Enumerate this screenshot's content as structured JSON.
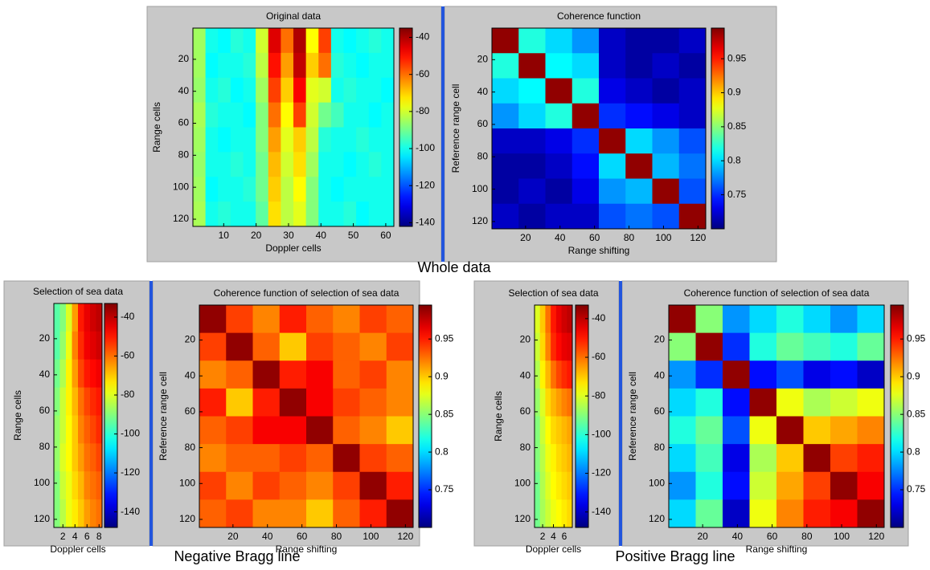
{
  "captions": [
    "Whole data",
    "Negative Bragg line",
    "Positive Bragg line"
  ],
  "chart_data": [
    {
      "type": "heatmap",
      "title": "Original data",
      "xlabel": "Doppler cells",
      "ylabel": "Range cells",
      "colormap": "jet",
      "xlim": [
        0.5,
        62.5
      ],
      "ylim": [
        0.5,
        124.5
      ],
      "xticks": [
        10,
        20,
        30,
        40,
        50,
        60
      ],
      "yticks": [
        20,
        40,
        60,
        80,
        100,
        120
      ],
      "clim": [
        -142,
        -35
      ],
      "cticks": [
        -40,
        -60,
        -80,
        -100,
        -120,
        -140
      ],
      "values": [
        [
          -85,
          -100,
          -102,
          -98,
          -100,
          -80,
          -45,
          -60,
          -40,
          -75,
          -55,
          -100,
          -102,
          -100,
          -98,
          -100
        ],
        [
          -85,
          -102,
          -100,
          -100,
          -98,
          -82,
          -50,
          -65,
          -42,
          -70,
          -60,
          -98,
          -100,
          -102,
          -100,
          -100
        ],
        [
          -86,
          -100,
          -98,
          -102,
          -100,
          -85,
          -55,
          -70,
          -48,
          -78,
          -80,
          -100,
          -98,
          -100,
          -100,
          -102
        ],
        [
          -84,
          -98,
          -100,
          -100,
          -102,
          -88,
          -60,
          -75,
          -55,
          -80,
          -90,
          -95,
          -100,
          -100,
          -102,
          -100
        ],
        [
          -85,
          -100,
          -102,
          -100,
          -100,
          -88,
          -65,
          -78,
          -70,
          -82,
          -98,
          -100,
          -100,
          -98,
          -100,
          -100
        ],
        [
          -86,
          -100,
          -100,
          -98,
          -100,
          -90,
          -68,
          -80,
          -72,
          -85,
          -100,
          -100,
          -102,
          -100,
          -98,
          -100
        ],
        [
          -85,
          -102,
          -100,
          -100,
          -98,
          -90,
          -70,
          -82,
          -75,
          -88,
          -100,
          -102,
          -100,
          -100,
          -100,
          -100
        ],
        [
          -84,
          -100,
          -98,
          -100,
          -100,
          -92,
          -72,
          -82,
          -78,
          -88,
          -100,
          -100,
          -98,
          -102,
          -100,
          -100
        ]
      ]
    },
    {
      "type": "heatmap",
      "title": "Coherence function",
      "xlabel": "Range shifting",
      "ylabel": "Reference range cell",
      "colormap": "jet",
      "xlim": [
        0.5,
        124.5
      ],
      "ylim": [
        0.5,
        124.5
      ],
      "xticks": [
        20,
        40,
        60,
        80,
        100,
        120
      ],
      "yticks": [
        20,
        40,
        60,
        80,
        100,
        120
      ],
      "clim": [
        0.7,
        0.995
      ],
      "cticks": [
        0.95,
        0.9,
        0.85,
        0.8,
        0.75
      ],
      "values": [
        [
          0.99,
          0.82,
          0.8,
          0.78,
          0.72,
          0.71,
          0.71,
          0.72
        ],
        [
          0.82,
          0.99,
          0.81,
          0.8,
          0.72,
          0.71,
          0.72,
          0.71
        ],
        [
          0.8,
          0.81,
          0.99,
          0.82,
          0.73,
          0.72,
          0.71,
          0.72
        ],
        [
          0.78,
          0.8,
          0.82,
          0.99,
          0.75,
          0.74,
          0.73,
          0.72
        ],
        [
          0.72,
          0.72,
          0.73,
          0.75,
          0.99,
          0.8,
          0.78,
          0.76
        ],
        [
          0.71,
          0.71,
          0.72,
          0.74,
          0.8,
          0.99,
          0.79,
          0.77
        ],
        [
          0.71,
          0.72,
          0.71,
          0.73,
          0.78,
          0.79,
          0.99,
          0.76
        ],
        [
          0.72,
          0.71,
          0.72,
          0.72,
          0.76,
          0.77,
          0.76,
          0.99
        ]
      ]
    },
    {
      "type": "heatmap",
      "title": "Selection of sea data",
      "xlabel": "Doppler cells",
      "ylabel": "Range cells",
      "colormap": "jet",
      "xlim": [
        0.5,
        8.5
      ],
      "ylim": [
        0.5,
        124.5
      ],
      "xticks": [
        2,
        4,
        6,
        8
      ],
      "yticks": [
        20,
        40,
        60,
        80,
        100,
        120
      ],
      "clim": [
        -148,
        -33
      ],
      "cticks": [
        -40,
        -60,
        -80,
        -100,
        -120,
        -140
      ],
      "values": [
        [
          -95,
          -90,
          -80,
          -65,
          -50,
          -45,
          -42,
          -40
        ],
        [
          -95,
          -88,
          -78,
          -62,
          -52,
          -46,
          -44,
          -42
        ],
        [
          -92,
          -85,
          -75,
          -65,
          -55,
          -50,
          -48,
          -46
        ],
        [
          -90,
          -82,
          -75,
          -68,
          -60,
          -55,
          -52,
          -50
        ],
        [
          -88,
          -82,
          -76,
          -70,
          -62,
          -58,
          -55,
          -52
        ],
        [
          -88,
          -80,
          -76,
          -70,
          -65,
          -60,
          -58,
          -55
        ],
        [
          -90,
          -82,
          -78,
          -72,
          -68,
          -62,
          -60,
          -58
        ],
        [
          -90,
          -84,
          -78,
          -74,
          -70,
          -65,
          -62,
          -60
        ]
      ]
    },
    {
      "type": "heatmap",
      "title": "Coherence function of selection of sea data",
      "xlabel": "Range shifting",
      "ylabel": "Reference range cell",
      "colormap": "jet",
      "xlim": [
        0.5,
        124.5
      ],
      "ylim": [
        0.5,
        124.5
      ],
      "xticks": [
        20,
        40,
        60,
        80,
        100,
        120
      ],
      "yticks": [
        20,
        40,
        60,
        80,
        100,
        120
      ],
      "clim": [
        0.7,
        0.995
      ],
      "cticks": [
        0.95,
        0.9,
        0.85,
        0.8,
        0.75
      ],
      "values": [
        [
          0.99,
          0.94,
          0.92,
          0.95,
          0.93,
          0.92,
          0.94,
          0.93
        ],
        [
          0.94,
          0.99,
          0.93,
          0.9,
          0.94,
          0.93,
          0.92,
          0.94
        ],
        [
          0.92,
          0.93,
          0.99,
          0.95,
          0.96,
          0.93,
          0.94,
          0.92
        ],
        [
          0.95,
          0.9,
          0.95,
          0.99,
          0.96,
          0.94,
          0.93,
          0.92
        ],
        [
          0.93,
          0.94,
          0.96,
          0.96,
          0.99,
          0.93,
          0.92,
          0.9
        ],
        [
          0.92,
          0.93,
          0.93,
          0.94,
          0.93,
          0.99,
          0.94,
          0.93
        ],
        [
          0.94,
          0.92,
          0.94,
          0.93,
          0.92,
          0.94,
          0.99,
          0.95
        ],
        [
          0.93,
          0.94,
          0.92,
          0.92,
          0.9,
          0.93,
          0.95,
          0.99
        ]
      ]
    },
    {
      "type": "heatmap",
      "title": "Selection of sea data",
      "xlabel": "Doppler cells",
      "ylabel": "Range cells",
      "colormap": "jet",
      "xlim": [
        0.5,
        7.5
      ],
      "ylim": [
        0.5,
        124.5
      ],
      "xticks": [
        2,
        4,
        6
      ],
      "yticks": [
        20,
        40,
        60,
        80,
        100,
        120
      ],
      "clim": [
        -148,
        -33
      ],
      "cticks": [
        -40,
        -60,
        -80,
        -100,
        -120,
        -140
      ],
      "values": [
        [
          -80,
          -70,
          -60,
          -50,
          -45,
          -42,
          -40
        ],
        [
          -82,
          -72,
          -62,
          -52,
          -48,
          -45,
          -44
        ],
        [
          -85,
          -75,
          -68,
          -60,
          -55,
          -52,
          -50
        ],
        [
          -88,
          -80,
          -72,
          -68,
          -65,
          -62,
          -60
        ],
        [
          -90,
          -82,
          -76,
          -72,
          -70,
          -68,
          -66
        ],
        [
          -90,
          -84,
          -78,
          -75,
          -72,
          -70,
          -68
        ],
        [
          -92,
          -85,
          -80,
          -76,
          -74,
          -72,
          -70
        ],
        [
          -92,
          -86,
          -82,
          -78,
          -76,
          -74,
          -72
        ]
      ]
    },
    {
      "type": "heatmap",
      "title": "Coherence function of selection of sea data",
      "xlabel": "Range shifting",
      "ylabel": "Reference range cell",
      "colormap": "jet",
      "xlim": [
        0.5,
        124.5
      ],
      "ylim": [
        0.5,
        124.5
      ],
      "xticks": [
        20,
        40,
        60,
        80,
        100,
        120
      ],
      "yticks": [
        20,
        40,
        60,
        80,
        100,
        120
      ],
      "clim": [
        0.7,
        0.995
      ],
      "cticks": [
        0.95,
        0.9,
        0.85,
        0.8,
        0.75
      ],
      "values": [
        [
          0.99,
          0.85,
          0.78,
          0.8,
          0.82,
          0.8,
          0.78,
          0.8
        ],
        [
          0.85,
          0.99,
          0.75,
          0.82,
          0.84,
          0.83,
          0.82,
          0.84
        ],
        [
          0.78,
          0.75,
          0.99,
          0.74,
          0.76,
          0.73,
          0.74,
          0.72
        ],
        [
          0.8,
          0.82,
          0.74,
          0.99,
          0.88,
          0.86,
          0.87,
          0.88
        ],
        [
          0.82,
          0.84,
          0.76,
          0.88,
          0.99,
          0.9,
          0.91,
          0.92
        ],
        [
          0.8,
          0.83,
          0.73,
          0.86,
          0.9,
          0.99,
          0.94,
          0.95
        ],
        [
          0.78,
          0.82,
          0.74,
          0.87,
          0.91,
          0.94,
          0.99,
          0.96
        ],
        [
          0.8,
          0.84,
          0.72,
          0.88,
          0.92,
          0.95,
          0.96,
          0.99
        ]
      ]
    }
  ]
}
